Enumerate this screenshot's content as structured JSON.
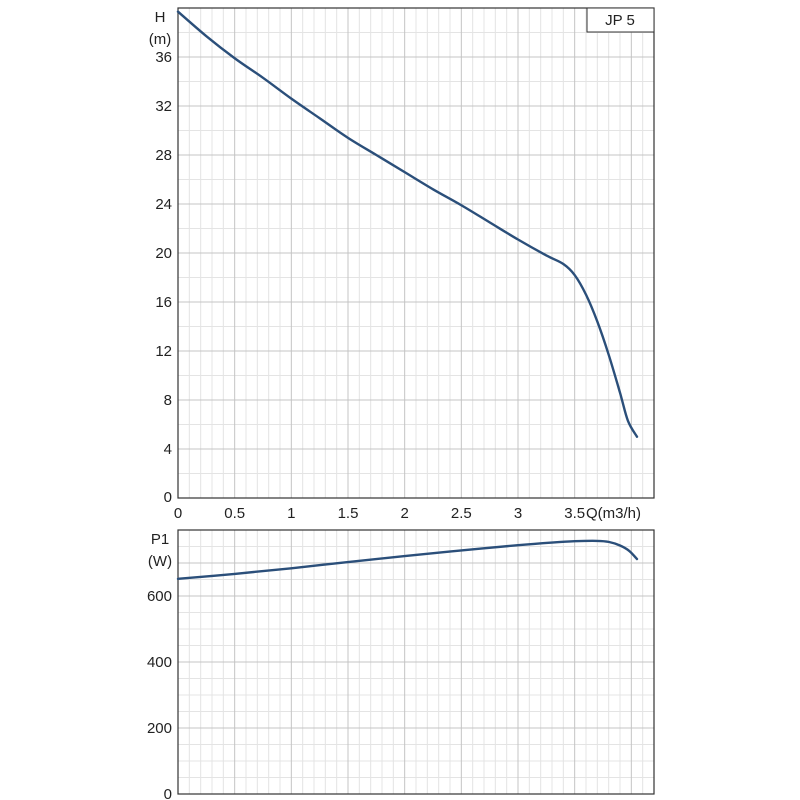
{
  "chart_data": [
    {
      "type": "line",
      "legend_label": "JP 5",
      "ylabel_line1": "H",
      "ylabel_line2": "(m)",
      "xlabel": "Q(m3/h)",
      "xlim": [
        0,
        4.2
      ],
      "ylim": [
        0,
        40
      ],
      "x_ticks": [
        0,
        0.5,
        1,
        1.5,
        2,
        2.5,
        3,
        3.5
      ],
      "x_tick_labels": [
        "0",
        "0.5",
        "1",
        "1.5",
        "2",
        "2.5",
        "3",
        "3.5"
      ],
      "y_ticks": [
        0,
        4,
        8,
        12,
        16,
        20,
        24,
        28,
        32,
        36
      ],
      "y_tick_labels": [
        "0",
        "4",
        "8",
        "12",
        "16",
        "20",
        "24",
        "28",
        "32",
        "36"
      ],
      "grid": true,
      "series": [
        {
          "color": "#2b4f7a",
          "points": [
            [
              0,
              39.7
            ],
            [
              0.25,
              37.7
            ],
            [
              0.5,
              35.9
            ],
            [
              0.75,
              34.3
            ],
            [
              1.0,
              32.6
            ],
            [
              1.25,
              31.0
            ],
            [
              1.5,
              29.4
            ],
            [
              1.75,
              28.0
            ],
            [
              2.0,
              26.6
            ],
            [
              2.25,
              25.2
            ],
            [
              2.5,
              23.9
            ],
            [
              2.75,
              22.5
            ],
            [
              3.0,
              21.1
            ],
            [
              3.25,
              19.8
            ],
            [
              3.4,
              19.1
            ],
            [
              3.5,
              18.2
            ],
            [
              3.6,
              16.6
            ],
            [
              3.7,
              14.4
            ],
            [
              3.8,
              11.7
            ],
            [
              3.9,
              8.6
            ],
            [
              3.97,
              6.3
            ],
            [
              4.05,
              5.0
            ]
          ]
        }
      ]
    },
    {
      "type": "line",
      "ylabel_line1": "P1",
      "ylabel_line2": "(W)",
      "xlim": [
        0,
        4.2
      ],
      "ylim": [
        0,
        800
      ],
      "y_ticks": [
        0,
        200,
        400,
        600
      ],
      "y_tick_labels": [
        "0",
        "200",
        "400",
        "600"
      ],
      "grid": true,
      "series": [
        {
          "color": "#2b4f7a",
          "points": [
            [
              0,
              652
            ],
            [
              0.5,
              667
            ],
            [
              1.0,
              684
            ],
            [
              1.5,
              703
            ],
            [
              2.0,
              721
            ],
            [
              2.5,
              738
            ],
            [
              3.0,
              754
            ],
            [
              3.3,
              762
            ],
            [
              3.5,
              766
            ],
            [
              3.7,
              767
            ],
            [
              3.8,
              764
            ],
            [
              3.9,
              753
            ],
            [
              3.98,
              737
            ],
            [
              4.05,
              712
            ]
          ]
        }
      ]
    }
  ]
}
